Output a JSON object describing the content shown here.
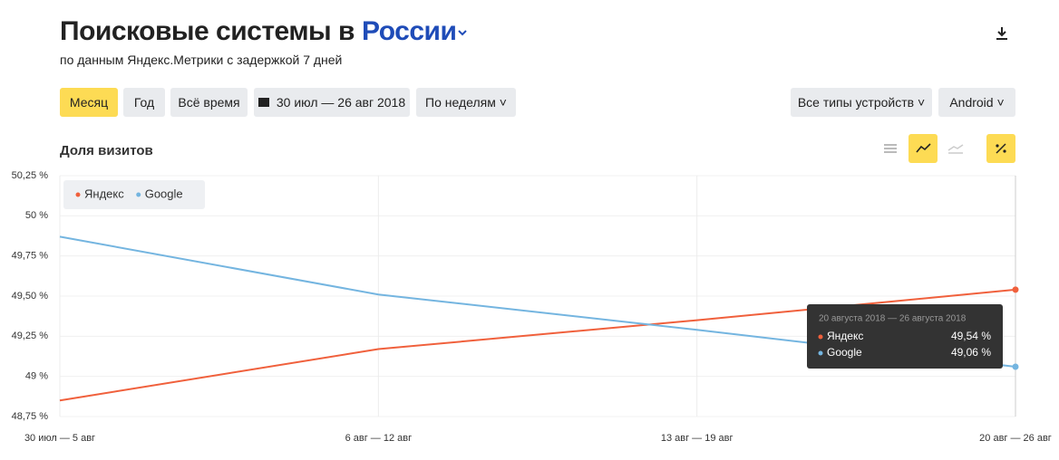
{
  "header": {
    "title": "Поисковые системы в",
    "region": "России",
    "subtitle": "по данным Яндекс.Метрики с задержкой 7 дней"
  },
  "toolbar": {
    "periods": [
      "Месяц",
      "Год",
      "Всё время"
    ],
    "date_range": "30 июл — 26 авг 2018",
    "grouping": "По неделям",
    "device": "Все типы устройств",
    "os": "Android"
  },
  "metric": "Доля визитов",
  "chart_data": {
    "type": "line",
    "categories": [
      "30 июл — 5 авг",
      "6 авг — 12 авг",
      "13 авг — 19 авг",
      "20 авг — 26 авг"
    ],
    "series": [
      {
        "name": "Яндекс",
        "color": "#f0603c",
        "values": [
          48.85,
          49.17,
          49.35,
          49.54
        ]
      },
      {
        "name": "Google",
        "color": "#74b5e0",
        "values": [
          49.87,
          49.51,
          49.29,
          49.06
        ]
      }
    ],
    "ylim": [
      48.75,
      50.25
    ],
    "yticks": [
      {
        "value": 50.25,
        "label": "50,25 %"
      },
      {
        "value": 50,
        "label": "50 %"
      },
      {
        "value": 49.75,
        "label": "49,75 %"
      },
      {
        "value": 49.5,
        "label": "49,50 %"
      },
      {
        "value": 49.25,
        "label": "49,25 %"
      },
      {
        "value": 49,
        "label": "49 %"
      },
      {
        "value": 48.75,
        "label": "48,75 %"
      }
    ],
    "grid": true,
    "legend": "top-left",
    "tooltip": {
      "title": "20 августа 2018 — 26 августа 2018",
      "labels": [
        "49,54 %",
        "49,06 %"
      ]
    }
  }
}
